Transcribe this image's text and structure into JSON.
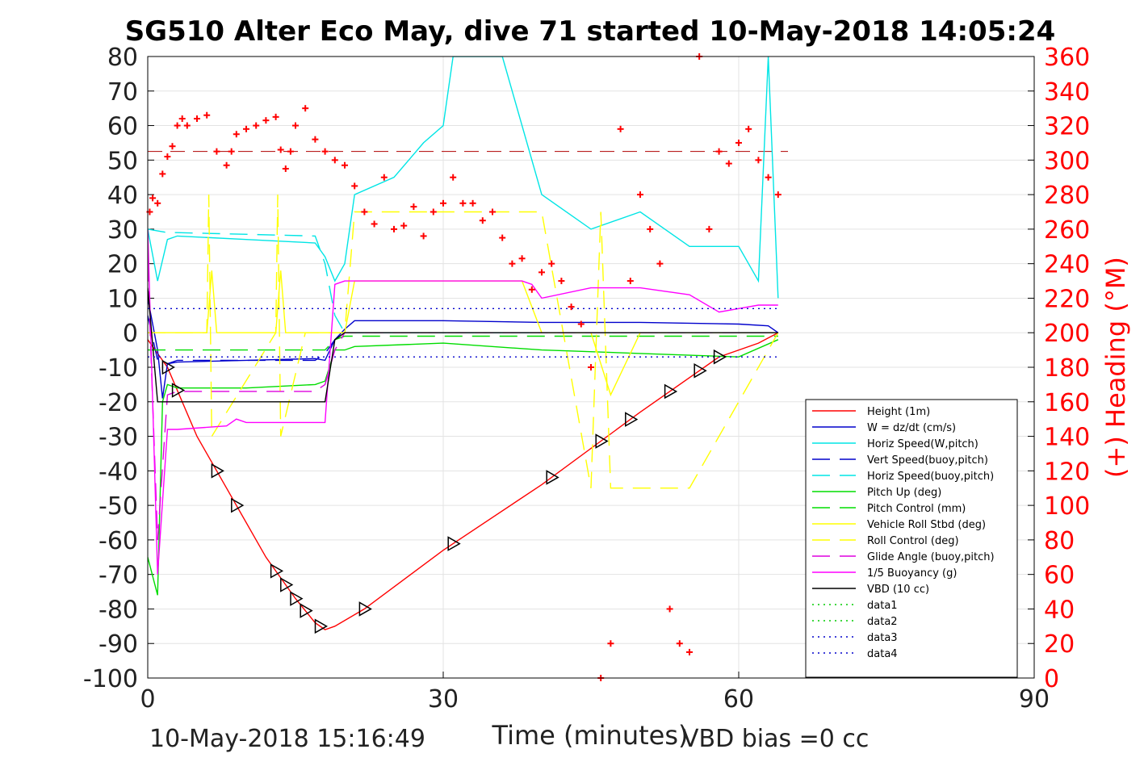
{
  "title": "SG510 Alter Eco May, dive 71 started 10-May-2018 14:05:24",
  "footer": {
    "left": "10-May-2018 15:16:49",
    "right": "VBD bias =0 cc"
  },
  "chart_data": {
    "type": "line",
    "title": "SG510 Alter Eco May, dive 71 started 10-May-2018 14:05:24",
    "xlabel": "Time (minutes)",
    "ylabel": "",
    "y2label": "(+) Heading (°M)",
    "xlim": [
      0,
      90
    ],
    "ylim": [
      -100,
      80
    ],
    "y2lim": [
      0,
      360
    ],
    "x_ticks": [
      "0",
      "30",
      "60",
      "90"
    ],
    "y_ticks": [
      "80",
      "70",
      "60",
      "50",
      "40",
      "30",
      "20",
      "10",
      "0",
      "-10",
      "-20",
      "-30",
      "-40",
      "-50",
      "-60",
      "-70",
      "-80",
      "-90",
      "-100"
    ],
    "y2_ticks": [
      "360",
      "340",
      "320",
      "300",
      "280",
      "260",
      "240",
      "220",
      "200",
      "180",
      "160",
      "140",
      "120",
      "100",
      "80",
      "60",
      "40",
      "20",
      "0"
    ],
    "grid": true,
    "legend_position": "bottom-right",
    "colors": {
      "heading": "#ff0000",
      "height": "#ff0000",
      "w": "#0000cc",
      "horiz": "#00e5e5",
      "pitch": "#00dd00",
      "roll": "#ffff00",
      "buoy": "#ff00ff",
      "vbd": "#000000"
    },
    "series": [
      {
        "name": "Height (1m)",
        "style": "solid",
        "color": "#ff0000",
        "x": [
          0,
          2,
          5,
          8,
          12,
          15,
          17,
          18,
          19,
          22,
          30,
          40,
          50,
          58,
          62,
          64
        ],
        "y": [
          -2,
          -10,
          -30,
          -45,
          -65,
          -77,
          -84,
          -86,
          -85,
          -80,
          -63,
          -44,
          -23,
          -7,
          -3,
          0
        ]
      },
      {
        "name": "W = dz/dt (cm/s)",
        "style": "solid",
        "color": "#0000cc",
        "x": [
          0,
          1,
          1.5,
          2,
          3,
          10,
          17,
          18,
          19,
          20,
          21,
          30,
          40,
          50,
          60,
          63,
          64
        ],
        "y": [
          10,
          -5,
          -19,
          -9,
          -8.5,
          -8,
          -7.5,
          -8,
          -2,
          1,
          3.5,
          3.5,
          3,
          3,
          2.5,
          2,
          0
        ]
      },
      {
        "name": "Horiz Speed(W,pitch)",
        "style": "solid",
        "color": "#00e5e5",
        "x": [
          0,
          1,
          2,
          3,
          10,
          17,
          18,
          19,
          20,
          21,
          25,
          28,
          30,
          31,
          33,
          36,
          40,
          45,
          50,
          55,
          60,
          62,
          63,
          64
        ],
        "y": [
          30,
          15,
          27,
          28,
          27,
          26,
          22,
          15,
          20,
          40,
          45,
          55,
          60,
          80,
          80,
          80,
          40,
          30,
          35,
          25,
          25,
          15,
          80,
          10
        ]
      },
      {
        "name": "Vert Speed(buoy,pitch)",
        "style": "dashed",
        "color": "#0000cc",
        "x": [
          0,
          1,
          2,
          3,
          17,
          18,
          19,
          20,
          64
        ],
        "y": [
          5,
          -8,
          -9,
          -8,
          -8,
          -6,
          -2,
          0,
          0
        ]
      },
      {
        "name": "Horiz Speed(buoy,pitch)",
        "style": "dashed",
        "color": "#00e5e5",
        "x": [
          0,
          2,
          3,
          17,
          18,
          19,
          20,
          64
        ],
        "y": [
          30,
          29,
          29,
          28,
          20,
          5,
          0,
          0
        ]
      },
      {
        "name": "Pitch Up (deg)",
        "style": "solid",
        "color": "#00dd00",
        "x": [
          0,
          1,
          1.5,
          2,
          3,
          10,
          17,
          18,
          19,
          20,
          21,
          30,
          40,
          50,
          60,
          64
        ],
        "y": [
          -65,
          -76,
          -20,
          -15,
          -16,
          -16,
          -15,
          -14,
          -5,
          -5,
          -4,
          -3,
          -5,
          -6,
          -7,
          -2
        ]
      },
      {
        "name": "Pitch Control (mm)",
        "style": "dashed",
        "color": "#00dd00",
        "x": [
          0,
          1,
          2,
          3,
          17,
          18,
          19,
          20,
          64
        ],
        "y": [
          -5,
          -5,
          -5,
          -5,
          -5,
          -5,
          -2,
          -1,
          -1
        ]
      },
      {
        "name": "Vehicle Roll Stbd (deg)",
        "style": "solid",
        "color": "#ffff00",
        "x": [
          0,
          2,
          6,
          6.5,
          7,
          9,
          13,
          13.5,
          14,
          16,
          18,
          20,
          21,
          22,
          30,
          38,
          40,
          45,
          47,
          50,
          55,
          60,
          64
        ],
        "y": [
          0,
          0,
          0,
          18,
          0,
          0,
          0,
          18,
          0,
          0,
          0,
          0,
          15,
          15,
          15,
          15,
          0,
          0,
          -18,
          0,
          0,
          0,
          0
        ]
      },
      {
        "name": "Roll Control (deg)",
        "style": "dashed",
        "color": "#ffff00",
        "x": [
          0,
          6,
          6.2,
          6.5,
          13,
          13.2,
          13.5,
          16,
          18,
          20,
          21,
          22,
          40,
          45,
          46,
          47,
          55,
          64
        ],
        "y": [
          0,
          0,
          40,
          -30,
          0,
          40,
          -30,
          0,
          0,
          0,
          35,
          35,
          35,
          -45,
          35,
          -45,
          -45,
          0
        ]
      },
      {
        "name": "Glide Angle (buoy,pitch)",
        "style": "dashed",
        "color": "#dd00dd",
        "x": [
          0,
          1,
          2,
          3,
          17,
          18,
          19,
          20,
          64
        ],
        "y": [
          20,
          -60,
          -18,
          -17,
          -17,
          -15,
          -5,
          0,
          0
        ]
      },
      {
        "name": "1/5 Buoyancy (g)",
        "style": "solid",
        "color": "#ff00ff",
        "x": [
          0,
          1,
          2,
          3,
          8,
          9,
          10,
          17,
          18,
          19,
          20,
          38,
          39,
          40,
          45,
          50,
          55,
          58,
          62,
          64
        ],
        "y": [
          30,
          -70,
          -28,
          -28,
          -27,
          -25,
          -26,
          -26,
          -26,
          14,
          15,
          15,
          14,
          10,
          13,
          13,
          11,
          6,
          8,
          8
        ]
      },
      {
        "name": "VBD (10 cc)",
        "style": "solid",
        "color": "#000000",
        "x": [
          0,
          1,
          2,
          17,
          18,
          19,
          20,
          64
        ],
        "y": [
          13,
          -20,
          -20,
          -20,
          -20,
          -2,
          0,
          0
        ]
      },
      {
        "name": "data1",
        "style": "dotted",
        "color": "#00cc00",
        "x": [],
        "y": []
      },
      {
        "name": "data2",
        "style": "dotted",
        "color": "#00cc00",
        "x": [],
        "y": []
      },
      {
        "name": "data3",
        "style": "dotted",
        "color": "#0000cc",
        "x": [
          0,
          64
        ],
        "y": [
          7,
          7
        ]
      },
      {
        "name": "data4",
        "style": "dotted",
        "color": "#0000cc",
        "x": [
          0,
          64
        ],
        "y": [
          -7,
          -7
        ]
      }
    ],
    "heading_reference": 305,
    "heading": {
      "x": [
        0.2,
        0.5,
        1,
        1.5,
        2,
        2.5,
        3,
        3.5,
        4,
        5,
        6,
        7,
        8,
        8.5,
        9,
        10,
        11,
        12,
        13,
        13.5,
        14,
        14.5,
        15,
        16,
        17,
        18,
        19,
        20,
        21,
        22,
        23,
        24,
        25,
        26,
        27,
        28,
        29,
        30,
        31,
        32,
        33,
        34,
        35,
        36,
        37,
        38,
        39,
        40,
        41,
        42,
        43,
        44,
        45,
        46,
        47,
        48,
        49,
        50,
        51,
        52,
        53,
        54,
        55,
        56,
        57,
        58,
        59,
        60,
        61,
        62,
        63,
        64
      ],
      "y": [
        270,
        278,
        275,
        292,
        302,
        308,
        320,
        324,
        320,
        324,
        326,
        305,
        297,
        305,
        315,
        318,
        320,
        323,
        325,
        306,
        295,
        305,
        320,
        330,
        312,
        305,
        300,
        297,
        285,
        270,
        263,
        290,
        260,
        262,
        273,
        256,
        270,
        275,
        290,
        275,
        275,
        265,
        270,
        255,
        240,
        243,
        225,
        235,
        240,
        230,
        215,
        205,
        180,
        0,
        20,
        318,
        230,
        280,
        260,
        240,
        40,
        20,
        15,
        360,
        260,
        305,
        298,
        310,
        318,
        300,
        290,
        280
      ]
    }
  }
}
